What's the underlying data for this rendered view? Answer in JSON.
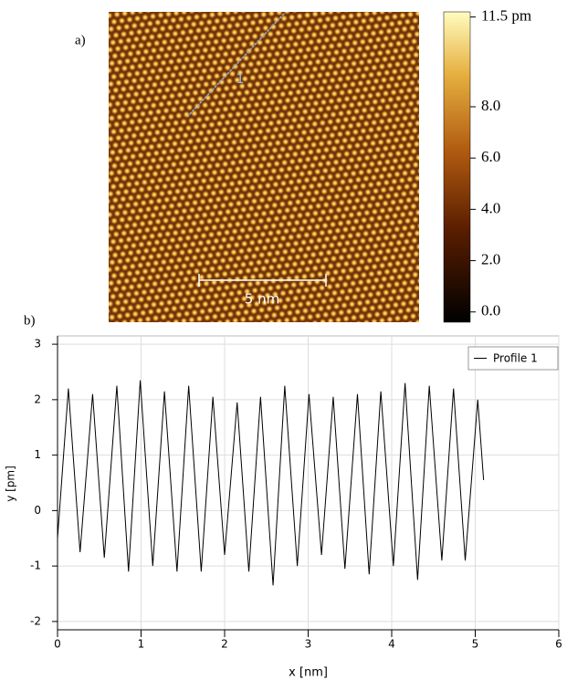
{
  "panel_labels": [
    "a)",
    "b)"
  ],
  "image": {
    "profile_label": "1",
    "scale_bar": "5 nm",
    "colorbar": {
      "clim": [
        -0.4,
        11.7
      ],
      "ticks": [
        {
          "value": 11.5,
          "label": "11.5 pm"
        },
        {
          "value": 8,
          "label": "8.0"
        },
        {
          "value": 6,
          "label": "6.0"
        },
        {
          "value": 4,
          "label": "4.0"
        },
        {
          "value": 2,
          "label": "2.0"
        },
        {
          "value": 0,
          "label": "0.0"
        }
      ]
    }
  },
  "chart_data": {
    "type": "line",
    "x_label": "x [nm]",
    "y_label": "y [pm]",
    "x": [
      0,
      0.13,
      0.27,
      0.42,
      0.56,
      0.71,
      0.85,
      0.99,
      1.14,
      1.28,
      1.43,
      1.57,
      1.72,
      1.86,
      2.0,
      2.15,
      2.29,
      2.43,
      2.58,
      2.72,
      2.87,
      3.01,
      3.16,
      3.3,
      3.44,
      3.59,
      3.73,
      3.87,
      4.02,
      4.16,
      4.31,
      4.45,
      4.6,
      4.74,
      4.88,
      5.03,
      5.1
    ],
    "series": [
      {
        "name": "Profile 1",
        "color": "#000000",
        "values": [
          -0.5,
          2.2,
          -0.75,
          2.1,
          -0.85,
          2.25,
          -1.1,
          2.35,
          -1.0,
          2.15,
          -1.1,
          2.25,
          -1.1,
          2.05,
          -0.8,
          1.95,
          -1.1,
          2.05,
          -1.35,
          2.25,
          -1.0,
          2.1,
          -0.8,
          2.05,
          -1.05,
          2.1,
          -1.15,
          2.15,
          -1.0,
          2.3,
          -1.25,
          2.25,
          -0.9,
          2.2,
          -0.9,
          2.0,
          0.55
        ]
      }
    ],
    "xlim": [
      0,
      6
    ],
    "ylim": [
      -2.15,
      3.15
    ],
    "xticks": [
      0,
      1,
      2,
      3,
      4,
      5,
      6
    ],
    "yticks": [
      -2,
      -1,
      0,
      1,
      2,
      3
    ],
    "grid": true,
    "legend": "upper-right"
  }
}
